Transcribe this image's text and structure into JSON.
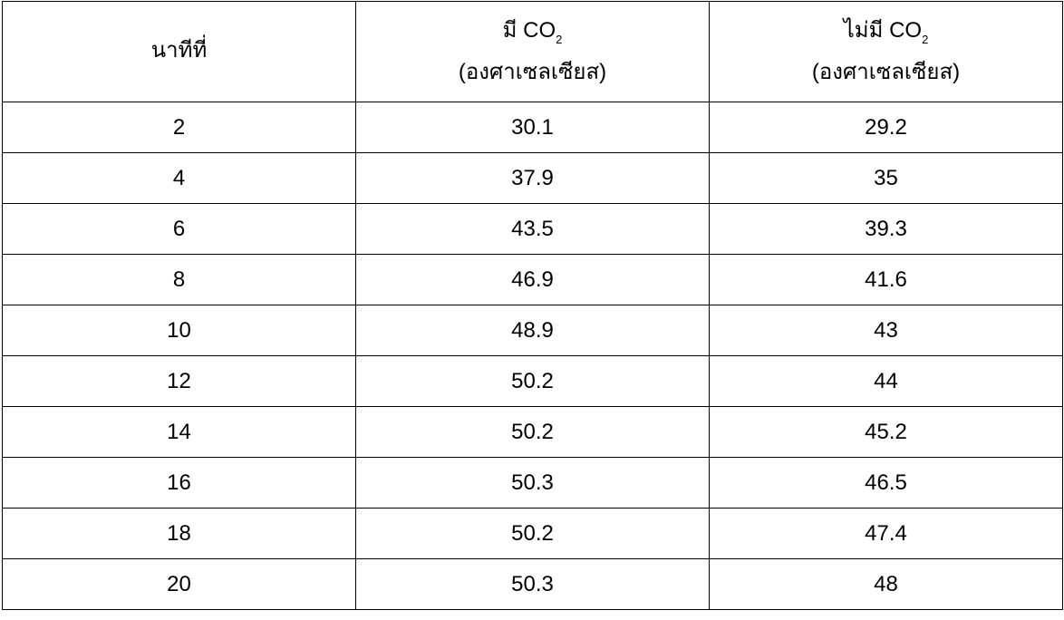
{
  "table": {
    "headers": {
      "minute": "นาทีที่",
      "with_co2": {
        "prefix": "มี CO",
        "subscript": "2",
        "unit": "(องศาเซลเซียส)"
      },
      "without_co2": {
        "prefix": "ไม่มี CO",
        "subscript": "2",
        "unit": "(องศาเซลเซียส)"
      }
    },
    "rows": [
      {
        "minute": "2",
        "with_co2": "30.1",
        "without_co2": "29.2"
      },
      {
        "minute": "4",
        "with_co2": "37.9",
        "without_co2": "35"
      },
      {
        "minute": "6",
        "with_co2": "43.5",
        "without_co2": "39.3"
      },
      {
        "minute": "8",
        "with_co2": "46.9",
        "without_co2": "41.6"
      },
      {
        "minute": "10",
        "with_co2": "48.9",
        "without_co2": "43"
      },
      {
        "minute": "12",
        "with_co2": "50.2",
        "without_co2": "44"
      },
      {
        "minute": "14",
        "with_co2": "50.2",
        "without_co2": "45.2"
      },
      {
        "minute": "16",
        "with_co2": "50.3",
        "without_co2": "46.5"
      },
      {
        "minute": "18",
        "with_co2": "50.2",
        "without_co2": "47.4"
      },
      {
        "minute": "20",
        "with_co2": "50.3",
        "without_co2": "48"
      }
    ]
  }
}
